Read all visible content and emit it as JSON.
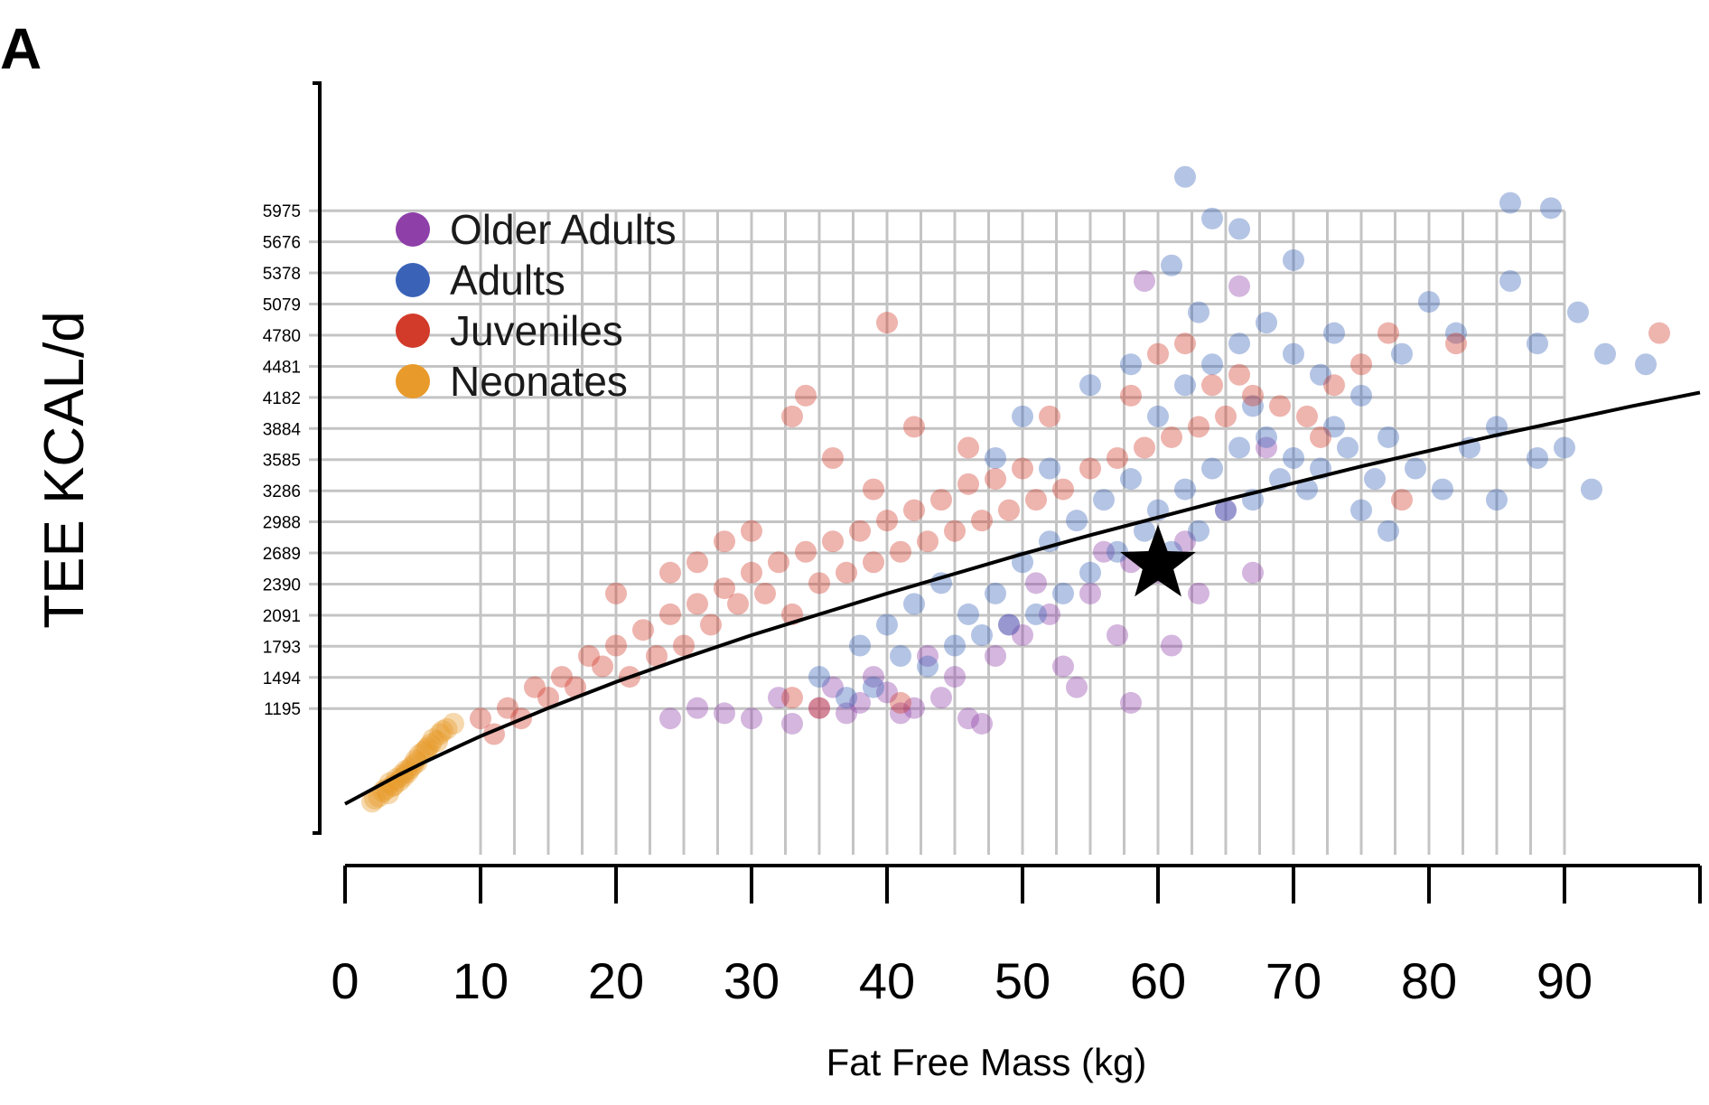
{
  "chart_data": {
    "type": "scatter",
    "panel_label": "A",
    "xlabel": "Fat Free Mass (kg)",
    "ylabel": "TEE KCAL/d",
    "xlim": [
      0,
      100
    ],
    "ylim": [
      0,
      7200
    ],
    "x_ticks": [
      0,
      10,
      20,
      30,
      40,
      50,
      60,
      70,
      80,
      90
    ],
    "x_tick_labels": [
      "0",
      "10",
      "20",
      "30",
      "40",
      "50",
      "60",
      "70",
      "80",
      "90"
    ],
    "y_ticks": [
      1195,
      1494,
      1793,
      2091,
      2390,
      2689,
      2988,
      3286,
      3585,
      3884,
      4182,
      4481,
      4780,
      5079,
      5378,
      5676,
      5975
    ],
    "y_tick_labels": [
      "1195",
      "1494",
      "1793",
      "2091",
      "2390",
      "2689",
      "2988",
      "3286",
      "3585",
      "3884",
      "4182",
      "4481",
      "4780",
      "5079",
      "5378",
      "5676",
      "5975"
    ],
    "grid": true,
    "grid_x_range": [
      10,
      90
    ],
    "legend_placement": "top-left",
    "series": [
      {
        "name": "Older Adults",
        "color": "#8e3fa8",
        "points": [
          [
            33,
            1050
          ],
          [
            37,
            1150
          ],
          [
            40,
            1350
          ],
          [
            42,
            1200
          ],
          [
            45,
            1500
          ],
          [
            48,
            1700
          ],
          [
            50,
            1900
          ],
          [
            52,
            2100
          ],
          [
            55,
            2300
          ],
          [
            58,
            2600
          ],
          [
            60,
            2500
          ],
          [
            62,
            2800
          ],
          [
            65,
            3100
          ],
          [
            44,
            1300
          ],
          [
            46,
            1100
          ],
          [
            38,
            1250
          ],
          [
            36,
            1400
          ],
          [
            53,
            1600
          ],
          [
            57,
            1900
          ],
          [
            61,
            1800
          ],
          [
            59,
            5300
          ],
          [
            66,
            5250
          ],
          [
            68,
            3700
          ],
          [
            35,
            1200
          ],
          [
            41,
            1150
          ],
          [
            47,
            1050
          ],
          [
            63,
            2300
          ],
          [
            67,
            2500
          ],
          [
            30,
            1100
          ],
          [
            28,
            1150
          ],
          [
            39,
            1500
          ],
          [
            43,
            1700
          ],
          [
            49,
            2000
          ],
          [
            51,
            2400
          ],
          [
            56,
            2700
          ],
          [
            54,
            1400
          ],
          [
            58,
            1250
          ],
          [
            24,
            1100
          ],
          [
            26,
            1200
          ],
          [
            32,
            1300
          ]
        ]
      },
      {
        "name": "Adults",
        "color": "#3a63b8",
        "points": [
          [
            35,
            1500
          ],
          [
            38,
            1800
          ],
          [
            40,
            2000
          ],
          [
            42,
            2200
          ],
          [
            44,
            2400
          ],
          [
            46,
            2100
          ],
          [
            48,
            2300
          ],
          [
            50,
            2600
          ],
          [
            52,
            2800
          ],
          [
            54,
            3000
          ],
          [
            56,
            3200
          ],
          [
            58,
            3400
          ],
          [
            60,
            3100
          ],
          [
            62,
            3300
          ],
          [
            64,
            3500
          ],
          [
            66,
            3700
          ],
          [
            68,
            3800
          ],
          [
            70,
            3600
          ],
          [
            72,
            3500
          ],
          [
            74,
            3700
          ],
          [
            76,
            3400
          ],
          [
            55,
            2500
          ],
          [
            57,
            2700
          ],
          [
            59,
            2900
          ],
          [
            61,
            2700
          ],
          [
            63,
            2900
          ],
          [
            65,
            3100
          ],
          [
            67,
            3200
          ],
          [
            69,
            3400
          ],
          [
            71,
            3300
          ],
          [
            45,
            1800
          ],
          [
            47,
            1900
          ],
          [
            49,
            2000
          ],
          [
            51,
            2100
          ],
          [
            53,
            2300
          ],
          [
            41,
            1700
          ],
          [
            43,
            1600
          ],
          [
            39,
            1400
          ],
          [
            37,
            1300
          ],
          [
            73,
            3900
          ],
          [
            75,
            4200
          ],
          [
            77,
            3800
          ],
          [
            79,
            3500
          ],
          [
            81,
            3300
          ],
          [
            83,
            3700
          ],
          [
            85,
            3900
          ],
          [
            60,
            4000
          ],
          [
            62,
            4300
          ],
          [
            64,
            4500
          ],
          [
            66,
            4700
          ],
          [
            68,
            4900
          ],
          [
            70,
            4600
          ],
          [
            72,
            4400
          ],
          [
            78,
            4600
          ],
          [
            80,
            5100
          ],
          [
            82,
            4800
          ],
          [
            86,
            5300
          ],
          [
            88,
            4700
          ],
          [
            91,
            5000
          ],
          [
            93,
            4600
          ],
          [
            96,
            4500
          ],
          [
            62,
            6300
          ],
          [
            64,
            5900
          ],
          [
            66,
            5800
          ],
          [
            86,
            6050
          ],
          [
            89,
            6000
          ],
          [
            61,
            5450
          ],
          [
            70,
            5500
          ],
          [
            73,
            4800
          ],
          [
            55,
            4300
          ],
          [
            50,
            4000
          ],
          [
            48,
            3600
          ],
          [
            52,
            3500
          ],
          [
            58,
            4500
          ],
          [
            63,
            5000
          ],
          [
            67,
            4100
          ],
          [
            75,
            3100
          ],
          [
            77,
            2900
          ],
          [
            85,
            3200
          ],
          [
            88,
            3600
          ],
          [
            90,
            3700
          ],
          [
            92,
            3300
          ]
        ]
      },
      {
        "name": "Juveniles",
        "color": "#d23a2a",
        "points": [
          [
            10,
            1100
          ],
          [
            12,
            1200
          ],
          [
            14,
            1400
          ],
          [
            16,
            1500
          ],
          [
            18,
            1700
          ],
          [
            20,
            1800
          ],
          [
            22,
            1950
          ],
          [
            24,
            2100
          ],
          [
            26,
            2200
          ],
          [
            28,
            2350
          ],
          [
            30,
            2500
          ],
          [
            32,
            2600
          ],
          [
            34,
            2700
          ],
          [
            36,
            2800
          ],
          [
            38,
            2900
          ],
          [
            40,
            3000
          ],
          [
            42,
            3100
          ],
          [
            44,
            3200
          ],
          [
            46,
            3350
          ],
          [
            48,
            3400
          ],
          [
            50,
            3500
          ],
          [
            11,
            950
          ],
          [
            13,
            1100
          ],
          [
            15,
            1300
          ],
          [
            17,
            1400
          ],
          [
            19,
            1600
          ],
          [
            21,
            1500
          ],
          [
            23,
            1700
          ],
          [
            25,
            1800
          ],
          [
            27,
            2000
          ],
          [
            29,
            2200
          ],
          [
            31,
            2300
          ],
          [
            33,
            2100
          ],
          [
            35,
            2400
          ],
          [
            37,
            2500
          ],
          [
            39,
            2600
          ],
          [
            41,
            2700
          ],
          [
            43,
            2800
          ],
          [
            45,
            2900
          ],
          [
            47,
            3000
          ],
          [
            49,
            3100
          ],
          [
            51,
            3200
          ],
          [
            53,
            3300
          ],
          [
            55,
            3500
          ],
          [
            57,
            3600
          ],
          [
            59,
            3700
          ],
          [
            61,
            3800
          ],
          [
            63,
            3900
          ],
          [
            65,
            4000
          ],
          [
            67,
            4200
          ],
          [
            69,
            4100
          ],
          [
            71,
            4000
          ],
          [
            73,
            4300
          ],
          [
            75,
            4500
          ],
          [
            77,
            4800
          ],
          [
            82,
            4700
          ],
          [
            97,
            4800
          ],
          [
            40,
            4900
          ],
          [
            34,
            4200
          ],
          [
            33,
            4000
          ],
          [
            36,
            3600
          ],
          [
            39,
            3300
          ],
          [
            42,
            3900
          ],
          [
            46,
            3700
          ],
          [
            52,
            4000
          ],
          [
            58,
            4200
          ],
          [
            60,
            4600
          ],
          [
            62,
            4700
          ],
          [
            64,
            4300
          ],
          [
            66,
            4400
          ],
          [
            72,
            3800
          ],
          [
            78,
            3200
          ],
          [
            20,
            2300
          ],
          [
            24,
            2500
          ],
          [
            28,
            2800
          ],
          [
            30,
            2900
          ],
          [
            26,
            2600
          ],
          [
            35,
            1200
          ],
          [
            33,
            1300
          ],
          [
            41,
            1250
          ]
        ]
      },
      {
        "name": "Neonates",
        "color": "#e89a2a",
        "points": [
          [
            2,
            300
          ],
          [
            2.5,
            350
          ],
          [
            3,
            420
          ],
          [
            3.2,
            380
          ],
          [
            3.5,
            450
          ],
          [
            4,
            500
          ],
          [
            4.2,
            560
          ],
          [
            4.5,
            600
          ],
          [
            5,
            650
          ],
          [
            5.2,
            700
          ],
          [
            5.5,
            750
          ],
          [
            6,
            800
          ],
          [
            6.3,
            850
          ],
          [
            6.5,
            900
          ],
          [
            7,
            950
          ],
          [
            7.5,
            1000
          ],
          [
            3.8,
            520
          ],
          [
            4.8,
            620
          ],
          [
            5.8,
            780
          ],
          [
            6.8,
            880
          ],
          [
            2.8,
            400
          ],
          [
            3.3,
            480
          ],
          [
            4.3,
            540
          ],
          [
            5.3,
            680
          ],
          [
            6.1,
            820
          ],
          [
            7.2,
            980
          ],
          [
            8,
            1050
          ],
          [
            2.2,
            330
          ],
          [
            3.6,
            460
          ],
          [
            4.6,
            580
          ]
        ]
      }
    ],
    "fit_curve": [
      [
        0,
        280
      ],
      [
        2,
        420
      ],
      [
        4,
        560
      ],
      [
        6,
        690
      ],
      [
        8,
        810
      ],
      [
        10,
        930
      ],
      [
        15,
        1200
      ],
      [
        20,
        1450
      ],
      [
        25,
        1680
      ],
      [
        30,
        1900
      ],
      [
        35,
        2100
      ],
      [
        40,
        2300
      ],
      [
        45,
        2490
      ],
      [
        50,
        2680
      ],
      [
        55,
        2860
      ],
      [
        60,
        3030
      ],
      [
        65,
        3200
      ],
      [
        70,
        3360
      ],
      [
        75,
        3520
      ],
      [
        80,
        3670
      ],
      [
        85,
        3820
      ],
      [
        90,
        3960
      ],
      [
        95,
        4100
      ],
      [
        100,
        4230
      ]
    ],
    "highlight_point": [
      60,
      2580
    ]
  }
}
